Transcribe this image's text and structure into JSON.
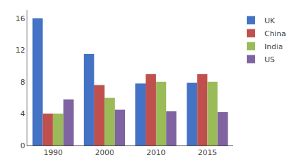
{
  "chart_data": {
    "type": "bar",
    "categories": [
      "1990",
      "2000",
      "2010",
      "2015"
    ],
    "series": [
      {
        "name": "UK",
        "color": "#4472C4",
        "values": [
          16,
          11.5,
          7.8,
          7.9
        ]
      },
      {
        "name": "China",
        "color": "#C0504D",
        "values": [
          4,
          7.6,
          9.0,
          9.0
        ]
      },
      {
        "name": "India",
        "color": "#9BBB59",
        "values": [
          4,
          6.0,
          8.0,
          8.0
        ]
      },
      {
        "name": "US",
        "color": "#8064A2",
        "values": [
          5.8,
          4.5,
          4.3,
          4.2
        ]
      }
    ],
    "ylim": [
      0,
      17
    ],
    "yticks": [
      0,
      4,
      8,
      12,
      16
    ],
    "grid": false,
    "legend": "right"
  }
}
